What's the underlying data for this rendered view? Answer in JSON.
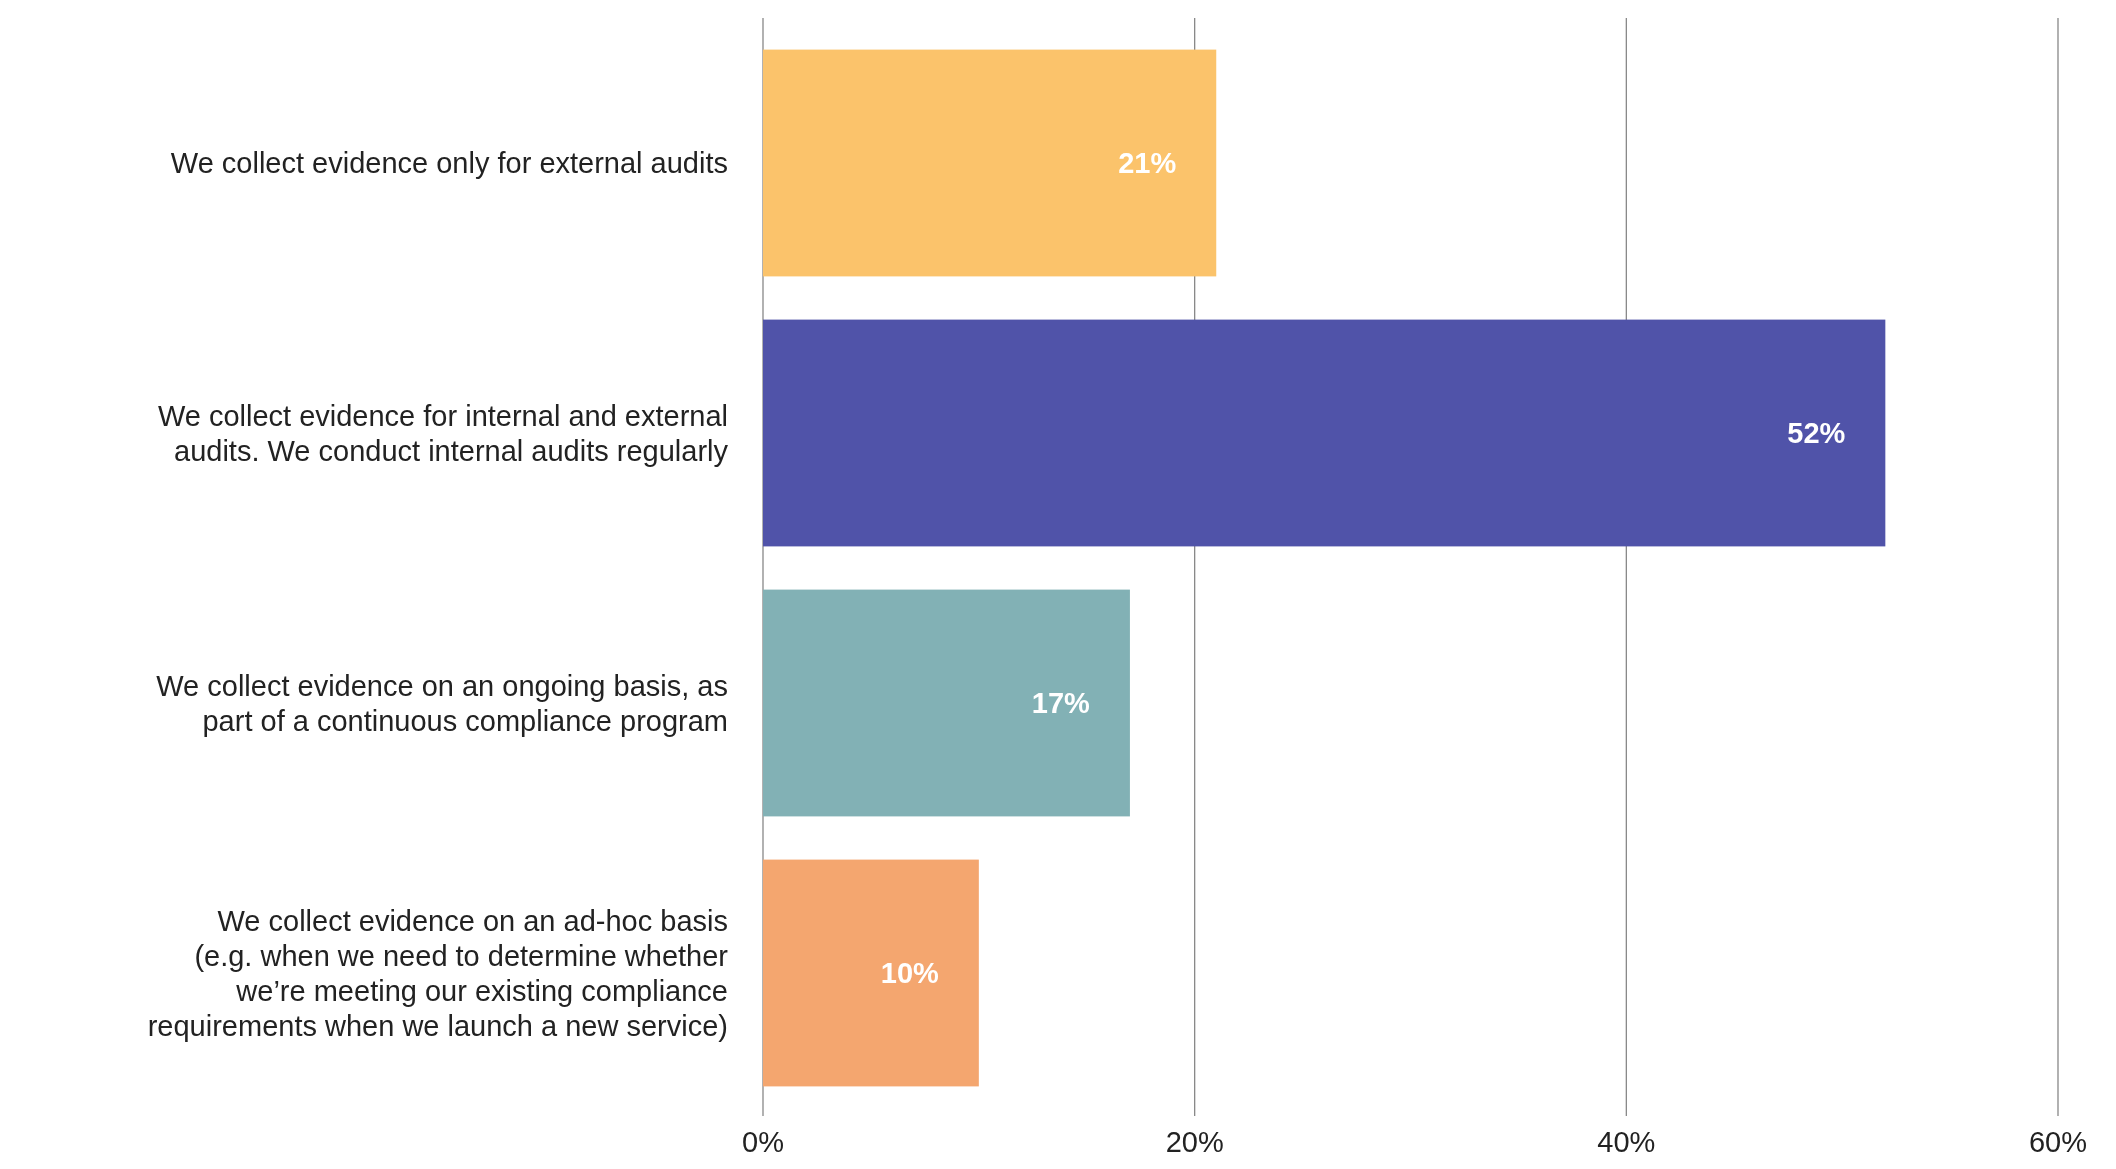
{
  "chart_data": {
    "type": "bar",
    "orientation": "horizontal",
    "categories": [
      "We collect evidence only for external audits",
      "We collect evidence for internal and external\naudits. We conduct internal audits regularly",
      "We collect evidence on an ongoing basis, as\npart of a continuous compliance program",
      "We collect evidence on an ad-hoc basis\n(e.g. when we need to determine whether\nwe’re meeting our existing compliance\nrequirements when we launch a new service)"
    ],
    "values": [
      21,
      52,
      17,
      10
    ],
    "colors": [
      "#fbc36b",
      "#5053a9",
      "#82b1b5",
      "#f4a66f"
    ],
    "xlim": [
      0,
      60
    ],
    "xticks": [
      {
        "value": 0,
        "label": "0%"
      },
      {
        "value": 20,
        "label": "20%"
      },
      {
        "value": 40,
        "label": "40%"
      },
      {
        "value": 60,
        "label": "60%"
      }
    ],
    "value_labels": [
      "21%",
      "52%",
      "17%",
      "10%"
    ],
    "grid": "x"
  }
}
